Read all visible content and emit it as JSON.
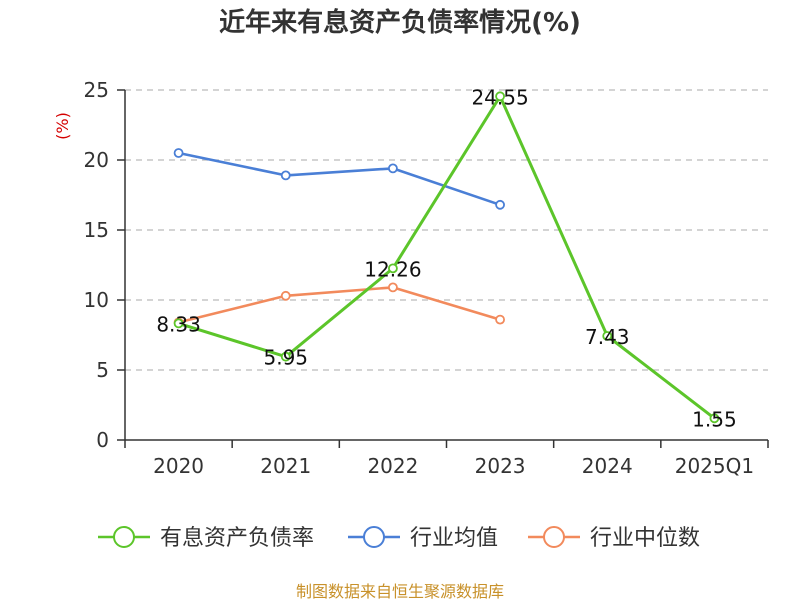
{
  "chart_data": {
    "type": "line",
    "title": "近年来有息资产负债率情况(%)",
    "unit_label": "(%)",
    "categories": [
      "2020",
      "2021",
      "2022",
      "2023",
      "2024",
      "2025Q1"
    ],
    "ylim": [
      0,
      25
    ],
    "yticks": [
      0,
      5,
      10,
      15,
      20,
      25
    ],
    "grid": true,
    "legend_position": "bottom",
    "series": [
      {
        "name": "有息资产负债率",
        "color": "#5cc52a",
        "values": [
          8.33,
          5.95,
          12.26,
          24.55,
          7.43,
          1.55
        ],
        "labels": [
          "8.33",
          "5.95",
          "12.26",
          "24.55",
          "7.43",
          "1.55"
        ]
      },
      {
        "name": "行业均值",
        "color": "#4a7fd6",
        "values": [
          20.5,
          18.9,
          19.4,
          16.8,
          null,
          null
        ]
      },
      {
        "name": "行业中位数",
        "color": "#f28a5c",
        "values": [
          8.4,
          10.3,
          10.9,
          8.6,
          null,
          null
        ]
      }
    ]
  },
  "footer": {
    "source": "制图数据来自恒生聚源数据库"
  }
}
